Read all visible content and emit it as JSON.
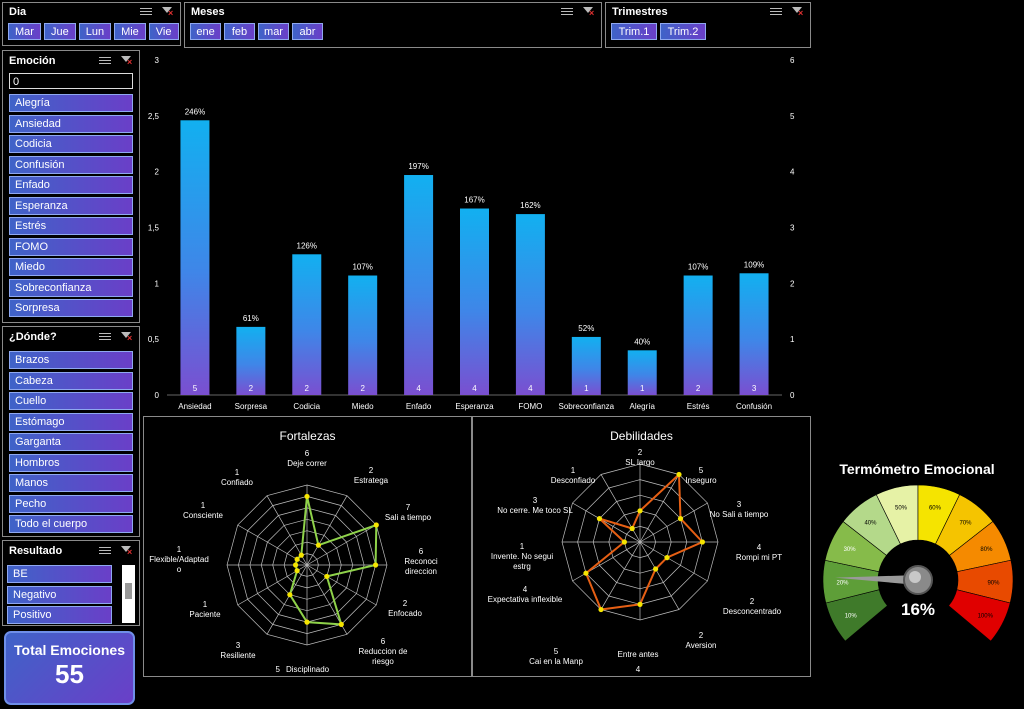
{
  "dia": {
    "title": "Dia",
    "items": [
      "Mar",
      "Jue",
      "Lun",
      "Mie",
      "Vie"
    ]
  },
  "meses": {
    "title": "Meses",
    "items": [
      "ene",
      "feb",
      "mar",
      "abr"
    ]
  },
  "trimestres": {
    "title": "Trimestres",
    "items": [
      "Trim.1",
      "Trim.2"
    ]
  },
  "emocion": {
    "title": "Emoción",
    "search_value": "0",
    "items": [
      "Alegría",
      "Ansiedad",
      "Codicia",
      "Confusión",
      "Enfado",
      "Esperanza",
      "Estrés",
      "FOMO",
      "Miedo",
      "Sobreconfianza",
      "Sorpresa"
    ]
  },
  "donde": {
    "title": "¿Dónde?",
    "items": [
      "Brazos",
      "Cabeza",
      "Cuello",
      "Estómago",
      "Garganta",
      "Hombros",
      "Manos",
      "Pecho",
      "Todo el cuerpo"
    ]
  },
  "resultado": {
    "title": "Resultado",
    "items": [
      "BE",
      "Negativo",
      "Positivo"
    ]
  },
  "total": {
    "label": "Total Emociones",
    "value": "55"
  },
  "thermometer": {
    "title": "Termómetro Emocional",
    "value": "16%",
    "level": 0.16,
    "segments": [
      "10%",
      "20%",
      "30%",
      "40%",
      "50%",
      "60%",
      "70%",
      "80%",
      "90%",
      "100%"
    ]
  },
  "chart_data": [
    {
      "type": "bar",
      "categories": [
        "Ansiedad",
        "Sorpresa",
        "Codicia",
        "Miedo",
        "Enfado",
        "Esperanza",
        "FOMO",
        "Sobreconfianza",
        "Alegría",
        "Estrés",
        "Confusión"
      ],
      "values": [
        2.46,
        0.61,
        1.26,
        1.07,
        1.97,
        1.67,
        1.62,
        0.52,
        0.4,
        1.07,
        1.09
      ],
      "value_labels": [
        "246%",
        "61%",
        "126%",
        "107%",
        "197%",
        "167%",
        "162%",
        "52%",
        "40%",
        "107%",
        "109%"
      ],
      "counts": [
        "5",
        "2",
        "2",
        "2",
        "4",
        "4",
        "4",
        "1",
        "1",
        "2",
        "3"
      ],
      "ylim": [
        0,
        3
      ],
      "y_ticks": [
        "0",
        "0,5",
        "1",
        "1,5",
        "2",
        "2,5",
        "3"
      ],
      "y2_ticks": [
        "0",
        "1",
        "2",
        "3",
        "4",
        "5",
        "6"
      ]
    },
    {
      "type": "radar",
      "title": "Fortalezas",
      "max": 7,
      "axes": [
        {
          "label": "Deje correr",
          "value": 6
        },
        {
          "label": "Estratega",
          "value": 2
        },
        {
          "label": "Sali a tiempo",
          "value": 7
        },
        {
          "label": "Reconoci direccion",
          "value": 6
        },
        {
          "label": "Enfocado",
          "value": 2
        },
        {
          "label": "Reduccion de riesgo",
          "value": 6
        },
        {
          "label": "Disciplinado",
          "value": 5
        },
        {
          "label": "Resiliente",
          "value": 3
        },
        {
          "label": "Paciente",
          "value": 1
        },
        {
          "label": "Flexible/Adaptado",
          "value": 1
        },
        {
          "label": "Consciente",
          "value": 1
        },
        {
          "label": "Confiado",
          "value": 1
        }
      ]
    },
    {
      "type": "radar",
      "title": "Debilidades",
      "max": 5,
      "axes": [
        {
          "label": "SL largo",
          "value": 2
        },
        {
          "label": "Inseguro",
          "value": 5
        },
        {
          "label": "No Sali a tiempo",
          "value": 3
        },
        {
          "label": "Rompi mi PT",
          "value": 4
        },
        {
          "label": "Desconcentrado",
          "value": 2
        },
        {
          "label": "Aversion",
          "value": 2
        },
        {
          "label": "Entre antes",
          "value": 4
        },
        {
          "label": "Cai en la Manp",
          "value": 5
        },
        {
          "label": "Expectativa inflexible",
          "value": 4
        },
        {
          "label": "Invente. No segui estrg",
          "value": 1
        },
        {
          "label": "No cerre. Me toco SL",
          "value": 3
        },
        {
          "label": "Desconfiado",
          "value": 1
        }
      ]
    }
  ]
}
